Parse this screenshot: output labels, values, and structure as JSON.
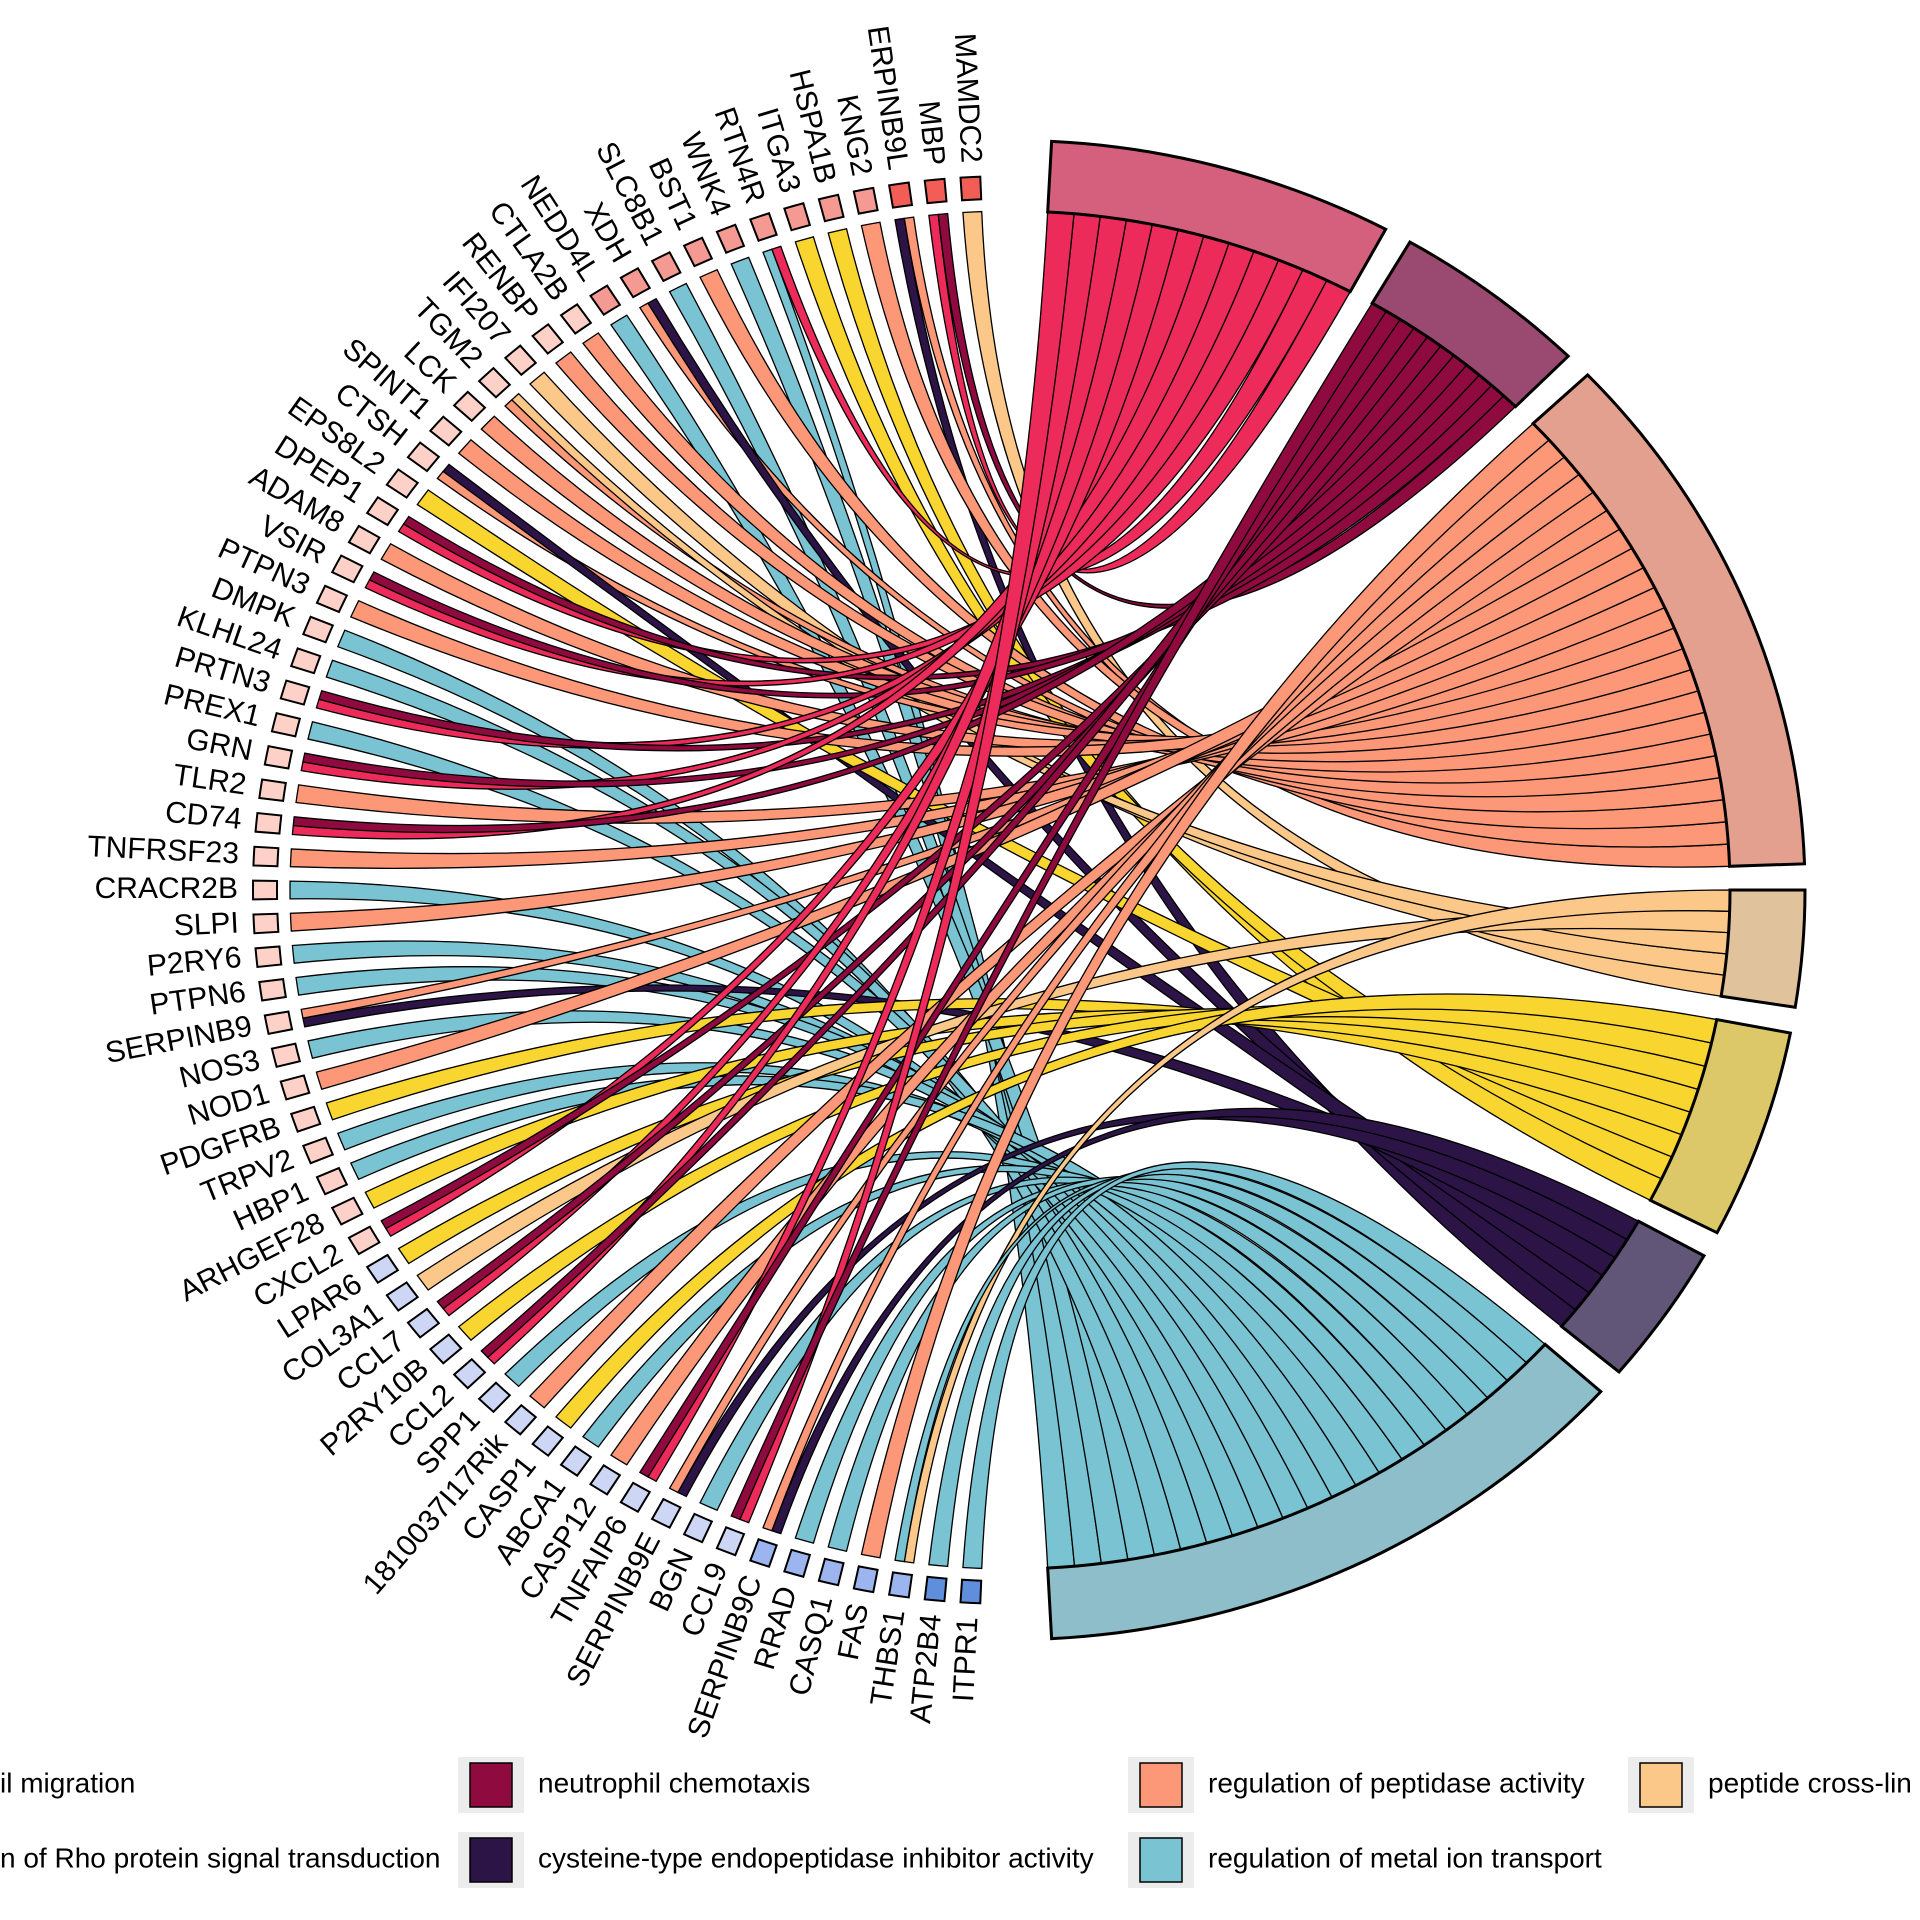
{
  "chart_data": {
    "type": "chord",
    "title": "",
    "colors": {
      "term_blocks": [
        "#d5607e",
        "#9a4a70",
        "#e3a08e",
        "#e0c29c",
        "#dcc869",
        "#615678",
        "#8ebec9"
      ],
      "term_chords": [
        "#ec2b5a",
        "#8e0a3f",
        "#fc9777",
        "#fcc889",
        "#f9d52f",
        "#2c1447",
        "#79c3d2"
      ],
      "gene_blocks": [
        "#f25d55",
        "#f59a92",
        "#fdd1c8",
        "#cdd6f5",
        "#9cb5ee",
        "#5f8edd"
      ],
      "outline": "#000000"
    },
    "legend": {
      "placement": "bottom",
      "entries": [
        {
          "name": "il migration",
          "color": "#ec2b5a"
        },
        {
          "name": "neutrophil chemotaxis",
          "color": "#8e0a3f"
        },
        {
          "name": "regulation of peptidase activity",
          "color": "#fc9777"
        },
        {
          "name": "peptide cross-lin",
          "color": "#fcc889"
        },
        {
          "name": "n of Rho protein signal transduction",
          "color": "#f9d52f"
        },
        {
          "name": "cysteine-type endopeptidase inhibitor activity",
          "color": "#2c1447"
        },
        {
          "name": "regulation of metal ion transport",
          "color": "#79c3d2"
        }
      ]
    },
    "terms": [
      {
        "name": "il migration",
        "size": 14
      },
      {
        "name": "neutrophil chemotaxis",
        "size": 8
      },
      {
        "name": "regulation of peptidase activity",
        "size": 23
      },
      {
        "name": "peptide cross-lin",
        "size": 5
      },
      {
        "name": "n of Rho protein signal transduction",
        "size": 9
      },
      {
        "name": "cysteine-type endopeptidase inhibitor activity",
        "size": 6
      },
      {
        "name": "regulation of metal ion transport",
        "size": 25
      }
    ],
    "genes": [
      "MAMDC2",
      "MBP",
      "ERPINB9L",
      "KNG2",
      "HSPA1B",
      "ITGA3",
      "RTN4R",
      "WNK4",
      "BST1",
      "SLC8B1",
      "XDH",
      "NEDD4L",
      "CTLA2B",
      "RENBP",
      "IFI207",
      "TGM2",
      "LCK",
      "SPINT1",
      "CTSH",
      "EPS8L2",
      "DPEP1",
      "ADAM8",
      "VSIR",
      "PTPN3",
      "DMPK",
      "KLHL24",
      "PRTN3",
      "PREX1",
      "GRN",
      "TLR2",
      "CD74",
      "TNFRSF23",
      "CRACR2B",
      "SLPI",
      "P2RY6",
      "PTPN6",
      "SERPINB9",
      "NOS3",
      "NOD1",
      "PDGFRB",
      "TRPV2",
      "HBP1",
      "ARHGEF28",
      "CXCL2",
      "LPAR6",
      "COL3A1",
      "CCL7",
      "P2RY10B",
      "CCL2",
      "SPP1",
      "1810037I17Rik",
      "CASP1",
      "ABCA1",
      "CASP12",
      "TNFAIP6",
      "SERPINB9E",
      "BGN",
      "CCL9",
      "SERPINB9C",
      "RRAD",
      "CASQ1",
      "FAS",
      "THBS1",
      "ATP2B4",
      "ITPR1"
    ],
    "links": [
      [
        "MAMDC2",
        3
      ],
      [
        "MBP",
        0
      ],
      [
        "MBP",
        1
      ],
      [
        "ERPINB9L",
        5
      ],
      [
        "ERPINB9L",
        2
      ],
      [
        "KNG2",
        2
      ],
      [
        "HSPA1B",
        4
      ],
      [
        "ITGA3",
        4
      ],
      [
        "RTN4R",
        6
      ],
      [
        "RTN4R",
        0
      ],
      [
        "WNK4",
        6
      ],
      [
        "BST1",
        2
      ],
      [
        "SLC8B1",
        6
      ],
      [
        "XDH",
        2
      ],
      [
        "XDH",
        5
      ],
      [
        "NEDD4L",
        6
      ],
      [
        "CTLA2B",
        2
      ],
      [
        "RENBP",
        2
      ],
      [
        "IFI207",
        3
      ],
      [
        "TGM2",
        2
      ],
      [
        "TGM2",
        3
      ],
      [
        "LCK",
        2
      ],
      [
        "SPINT1",
        2
      ],
      [
        "CTSH",
        2
      ],
      [
        "CTSH",
        5
      ],
      [
        "EPS8L2",
        4
      ],
      [
        "DPEP1",
        0
      ],
      [
        "DPEP1",
        1
      ],
      [
        "ADAM8",
        2
      ],
      [
        "VSIR",
        0
      ],
      [
        "VSIR",
        1
      ],
      [
        "PTPN3",
        2
      ],
      [
        "DMPK",
        6
      ],
      [
        "KLHL24",
        6
      ],
      [
        "PRTN3",
        0
      ],
      [
        "PRTN3",
        1
      ],
      [
        "PREX1",
        6
      ],
      [
        "GRN",
        0
      ],
      [
        "GRN",
        1
      ],
      [
        "TLR2",
        2
      ],
      [
        "CD74",
        0
      ],
      [
        "CD74",
        1
      ],
      [
        "TNFRSF23",
        2
      ],
      [
        "CRACR2B",
        6
      ],
      [
        "SLPI",
        2
      ],
      [
        "P2RY6",
        6
      ],
      [
        "PTPN6",
        6
      ],
      [
        "SERPINB9",
        5
      ],
      [
        "SERPINB9",
        2
      ],
      [
        "NOS3",
        6
      ],
      [
        "NOD1",
        2
      ],
      [
        "PDGFRB",
        4
      ],
      [
        "TRPV2",
        6
      ],
      [
        "HBP1",
        6
      ],
      [
        "ARHGEF28",
        4
      ],
      [
        "CXCL2",
        0
      ],
      [
        "CXCL2",
        1
      ],
      [
        "LPAR6",
        4
      ],
      [
        "COL3A1",
        3
      ],
      [
        "CCL7",
        0
      ],
      [
        "CCL7",
        1
      ],
      [
        "P2RY10B",
        4
      ],
      [
        "CCL2",
        0
      ],
      [
        "CCL2",
        1
      ],
      [
        "SPP1",
        6
      ],
      [
        "1810037I17Rik",
        2
      ],
      [
        "CASP1",
        4
      ],
      [
        "ABCA1",
        6
      ],
      [
        "CASP12",
        2
      ],
      [
        "TNFAIP6",
        0
      ],
      [
        "TNFAIP6",
        1
      ],
      [
        "SERPINB9E",
        5
      ],
      [
        "SERPINB9E",
        2
      ],
      [
        "BGN",
        6
      ],
      [
        "CCL9",
        0
      ],
      [
        "CCL9",
        1
      ],
      [
        "SERPINB9C",
        5
      ],
      [
        "SERPINB9C",
        2
      ],
      [
        "RRAD",
        6
      ],
      [
        "CASQ1",
        6
      ],
      [
        "FAS",
        2
      ],
      [
        "THBS1",
        3
      ],
      [
        "THBS1",
        6
      ],
      [
        "ATP2B4",
        6
      ],
      [
        "ITPR1",
        6
      ]
    ]
  }
}
